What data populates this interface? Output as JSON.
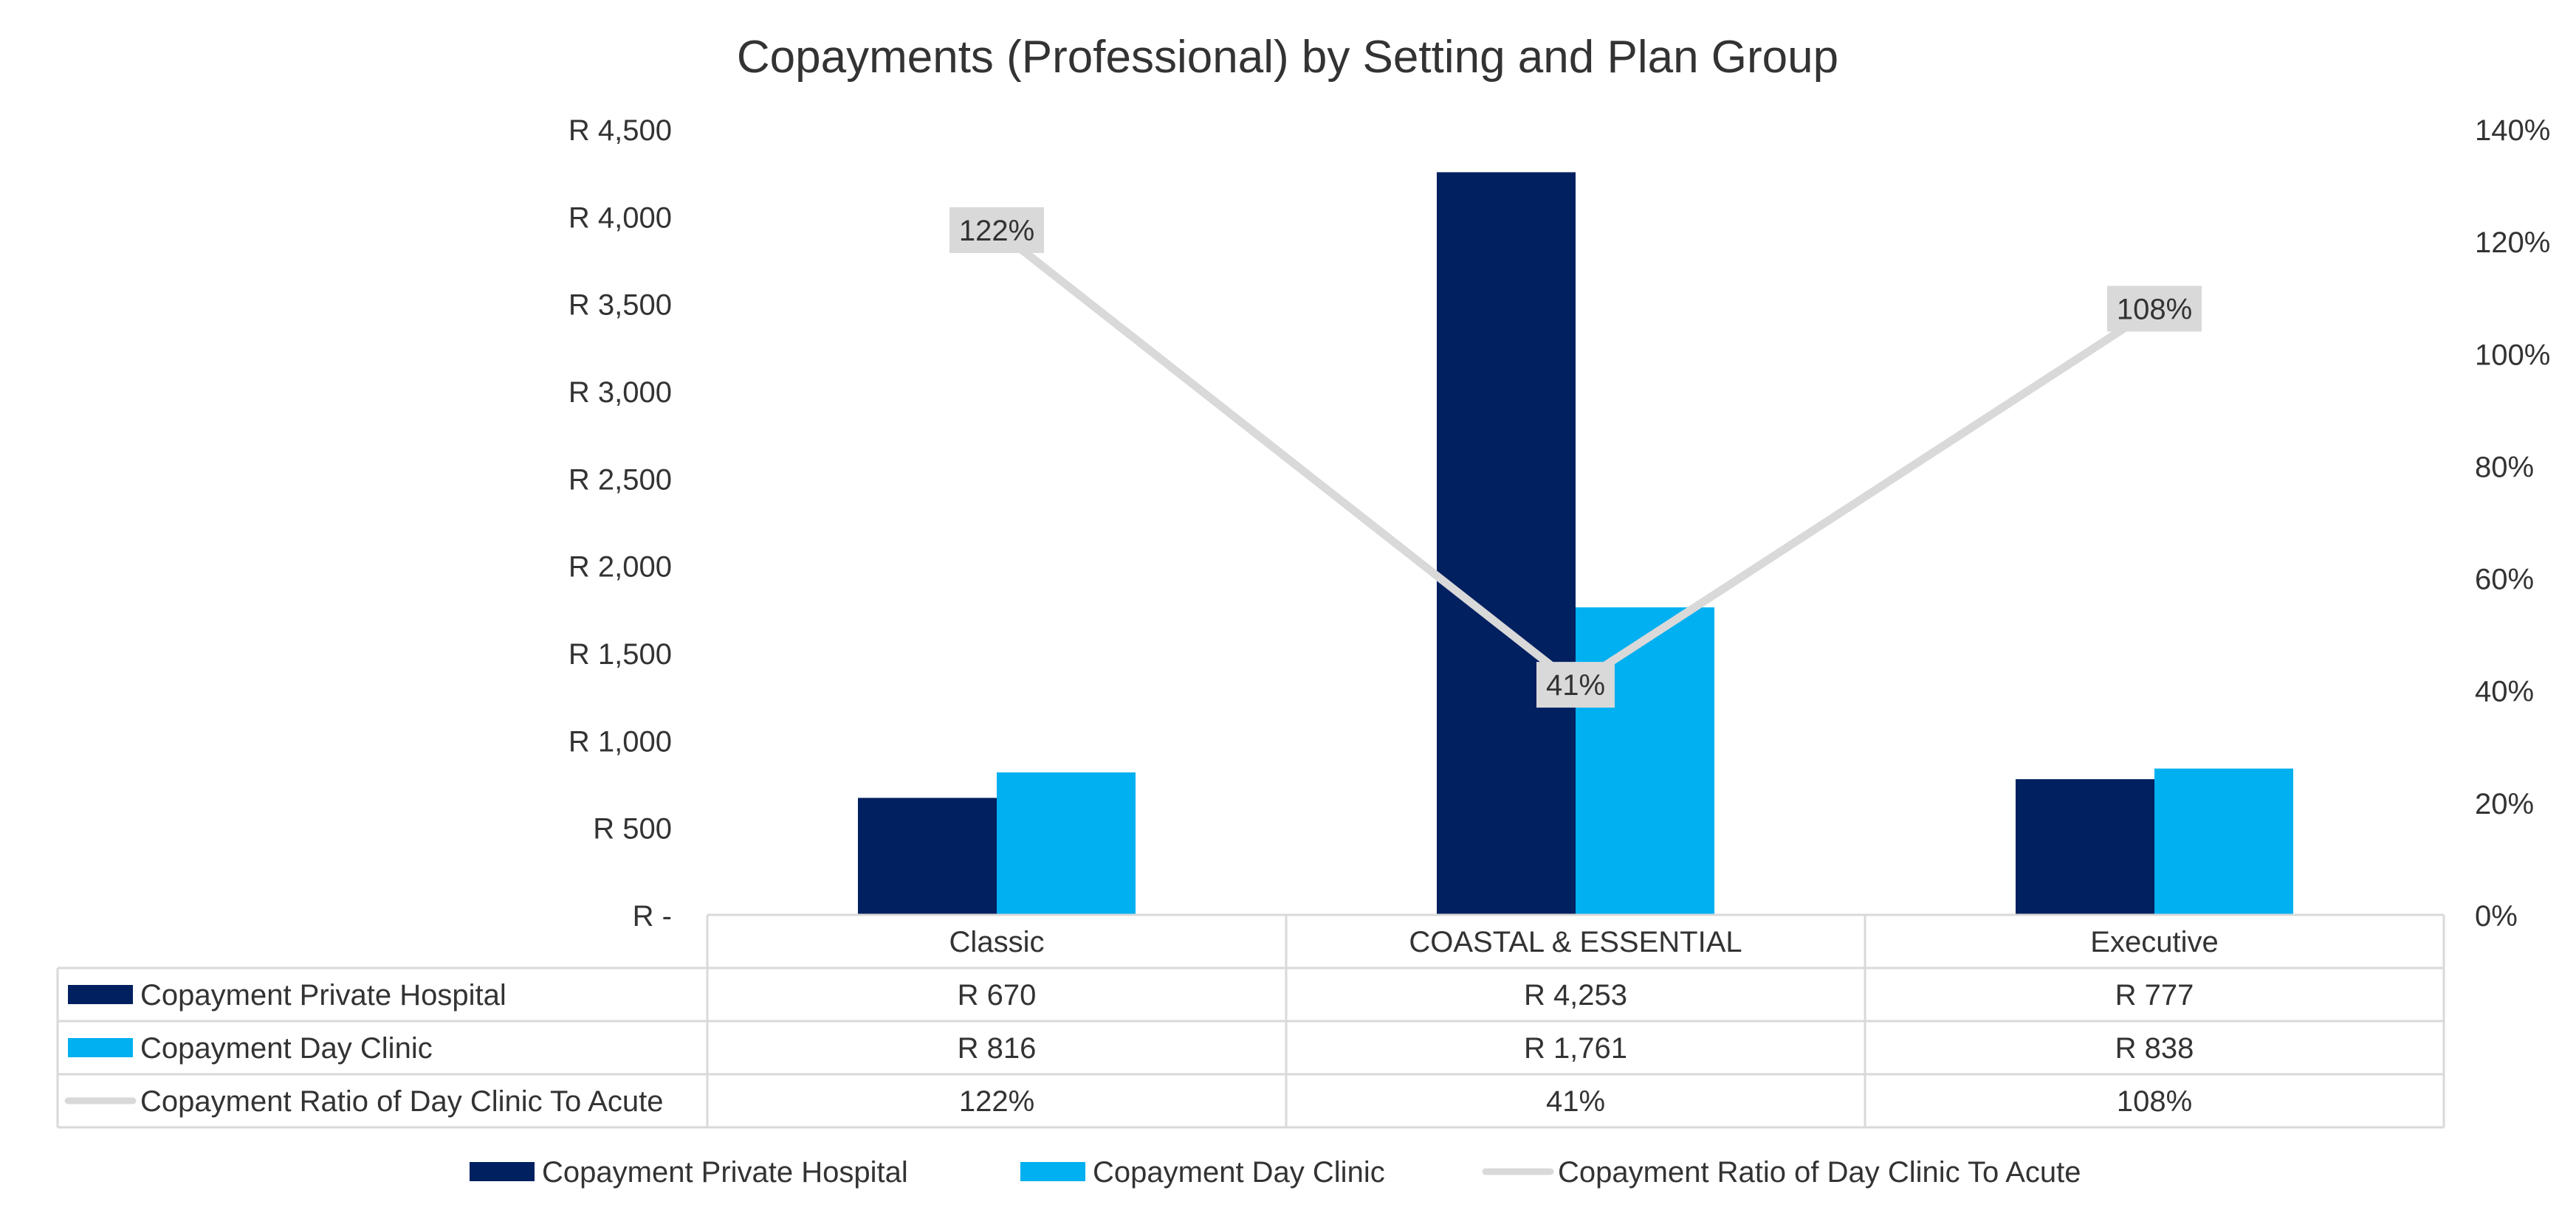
{
  "chart_data": {
    "type": "bar",
    "title": "Copayments (Professional) by Setting and Plan Group",
    "categories": [
      "Classic",
      "COASTAL & ESSENTIAL",
      "Executive"
    ],
    "y_left": {
      "min": 0,
      "max": 4500,
      "step": 500,
      "tick_labels": [
        "R -",
        "R 500",
        "R 1,000",
        "R 1,500",
        "R 2,000",
        "R 2,500",
        "R 3,000",
        "R 3,500",
        "R 4,000",
        "R 4,500"
      ]
    },
    "y_right": {
      "min": 0,
      "max": 140,
      "step": 20,
      "tick_labels": [
        "0%",
        "20%",
        "40%",
        "60%",
        "80%",
        "100%",
        "120%",
        "140%"
      ]
    },
    "grid": false,
    "legend_position": "bottom",
    "series": [
      {
        "name": "Copayment Private Hospital",
        "type": "bar",
        "axis": "left",
        "color": "#002060",
        "values": [
          670,
          4253,
          777
        ],
        "labels": [
          "R 670",
          "R 4,253",
          "R 777"
        ]
      },
      {
        "name": "Copayment Day Clinic",
        "type": "bar",
        "axis": "left",
        "color": "#00B0F0",
        "values": [
          816,
          1761,
          838
        ],
        "labels": [
          "R 816",
          "R 1,761",
          "R 838"
        ]
      },
      {
        "name": "Copayment Ratio of Day Clinic To Acute",
        "type": "line",
        "axis": "right",
        "color": "#D9D9D9",
        "values": [
          122,
          41,
          108
        ],
        "labels": [
          "122%",
          "41%",
          "108%"
        ]
      }
    ]
  }
}
